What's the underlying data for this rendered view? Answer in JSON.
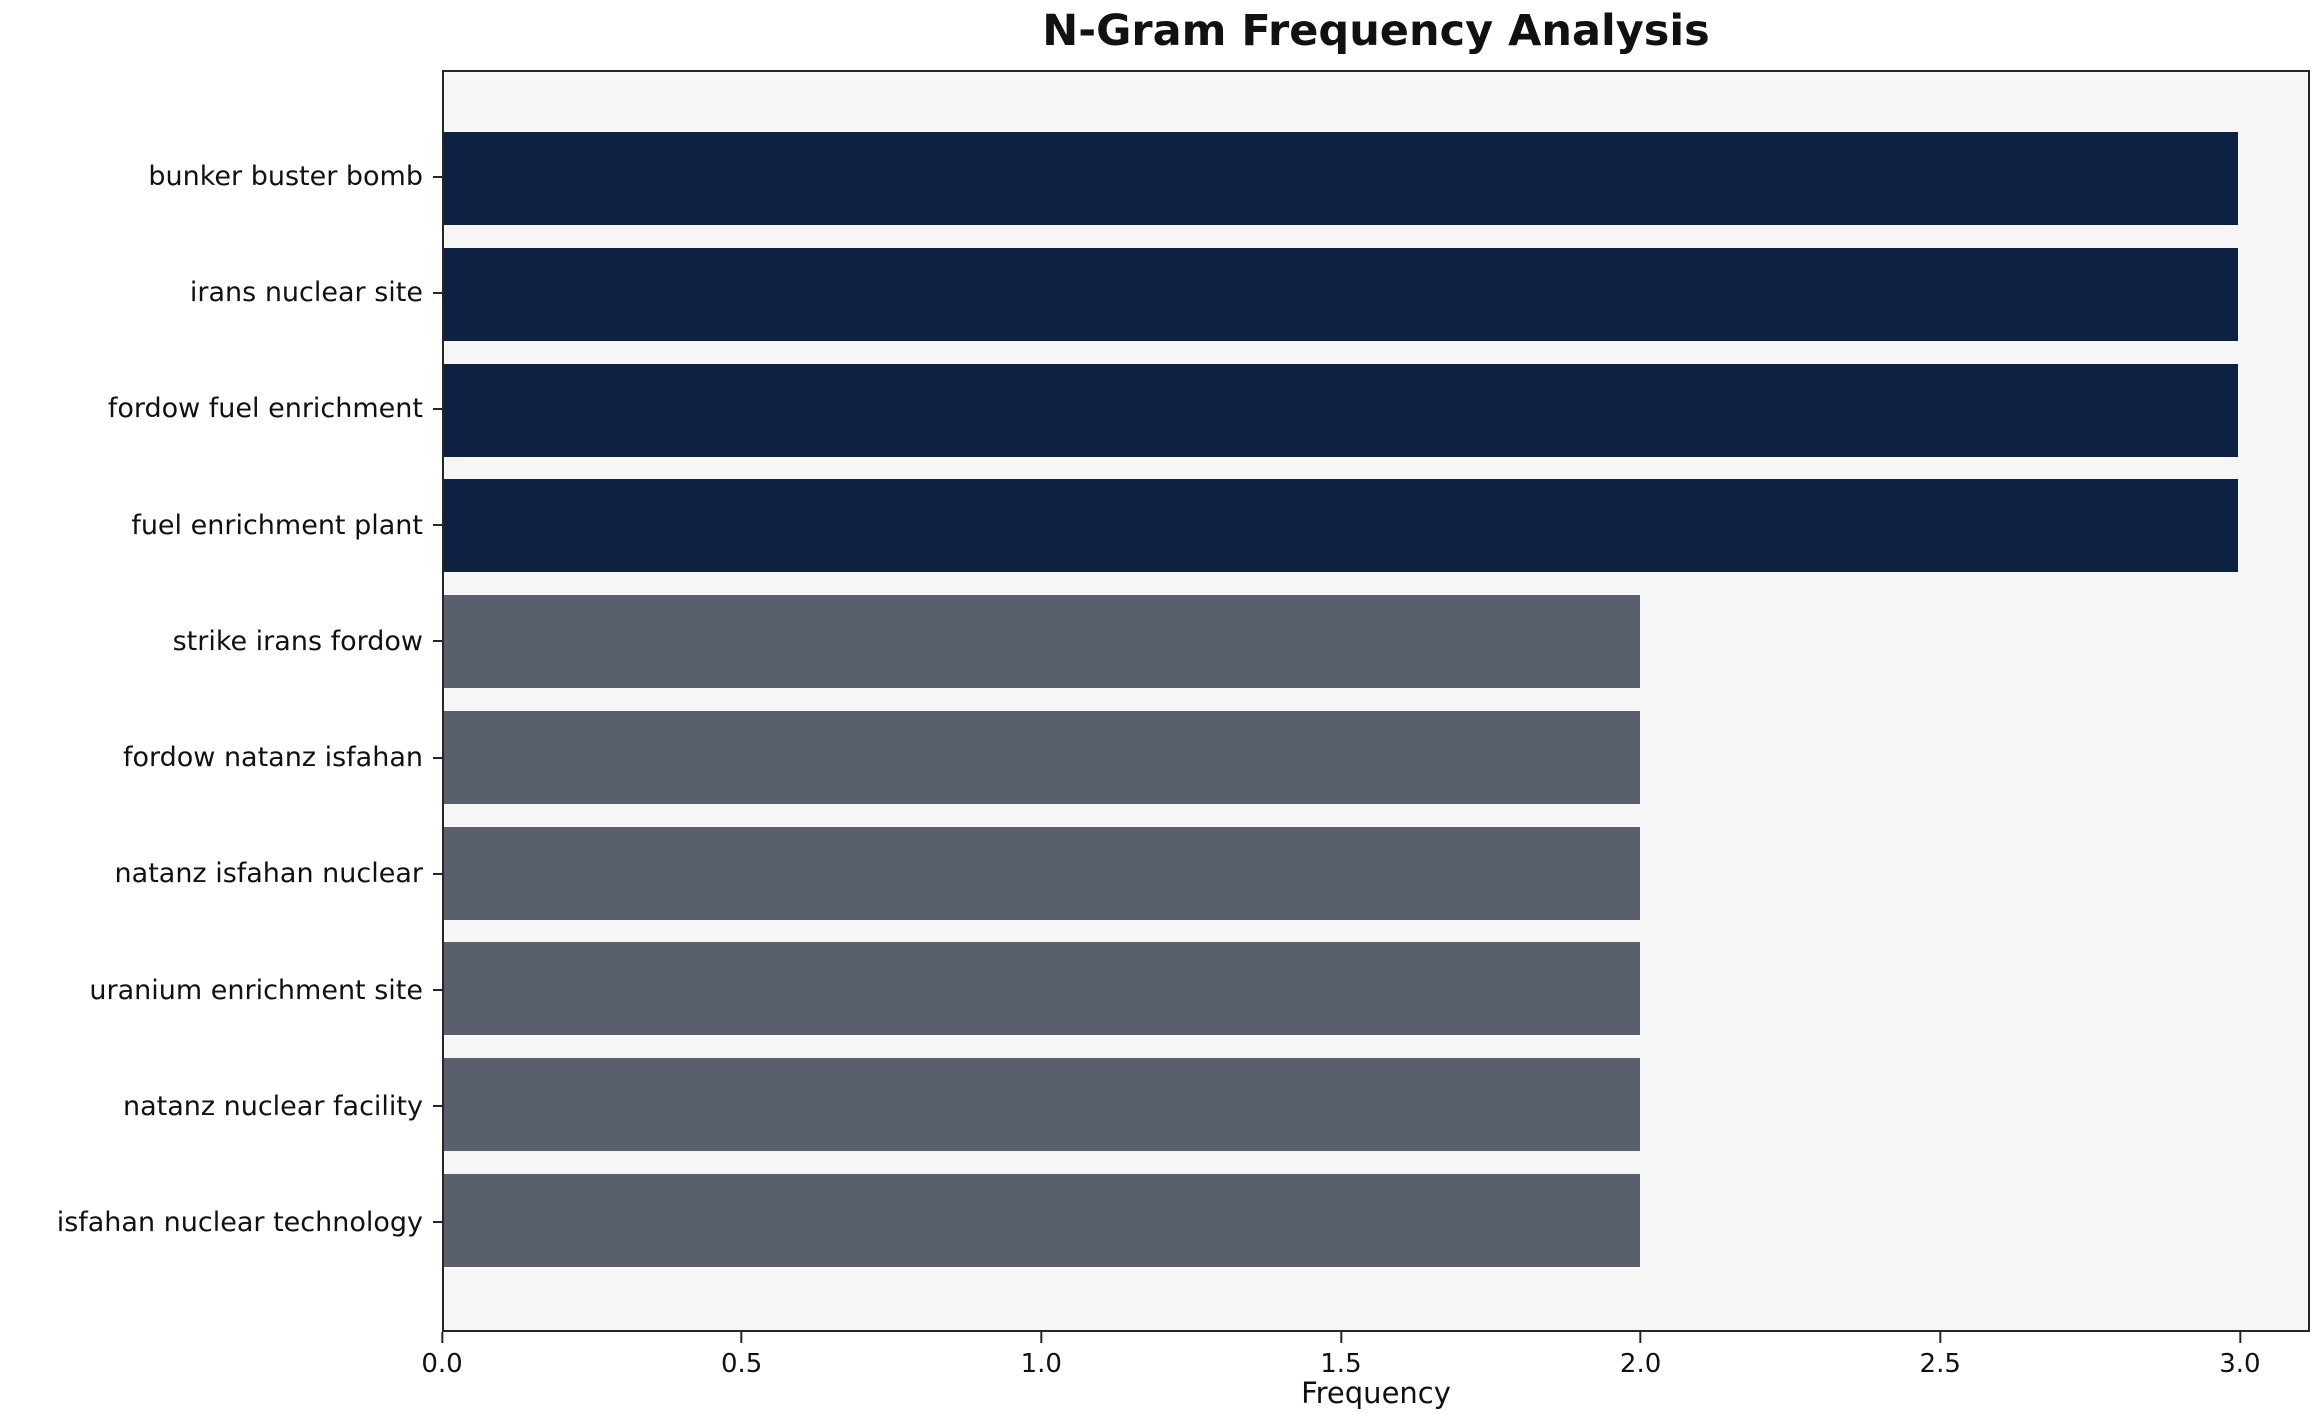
{
  "chart_data": {
    "type": "bar",
    "orientation": "horizontal",
    "title": "N-Gram Frequency Analysis",
    "xlabel": "Frequency",
    "ylabel": "",
    "grid": false,
    "legend": null,
    "xlim": [
      0,
      3.117
    ],
    "xticks": [
      "0.0",
      "0.5",
      "1.0",
      "1.5",
      "2.0",
      "2.5",
      "3.0"
    ],
    "xtick_values": [
      0,
      0.5,
      1.0,
      1.5,
      2.0,
      2.5,
      3.0
    ],
    "categories": [
      "bunker buster bomb",
      "irans nuclear site",
      "fordow fuel enrichment",
      "fuel enrichment plant",
      "strike irans fordow",
      "fordow natanz isfahan",
      "natanz isfahan nuclear",
      "uranium enrichment site",
      "natanz nuclear facility",
      "isfahan nuclear technology"
    ],
    "values": [
      3,
      3,
      3,
      3,
      2,
      2,
      2,
      2,
      2,
      2
    ],
    "bar_colors": [
      "#0d2142",
      "#0d2142",
      "#0d2142",
      "#0d2142",
      "#5a5f6d",
      "#5a5f6d",
      "#5a5f6d",
      "#5a5f6d",
      "#5a5f6d",
      "#5a5f6d"
    ],
    "colors": {
      "high_freq": "#0d2142",
      "low_freq": "#5a5f6d",
      "plot_background": "#f6f6f6",
      "page_background": "#ffffff",
      "spine": "#262626",
      "text": "#111111"
    }
  }
}
